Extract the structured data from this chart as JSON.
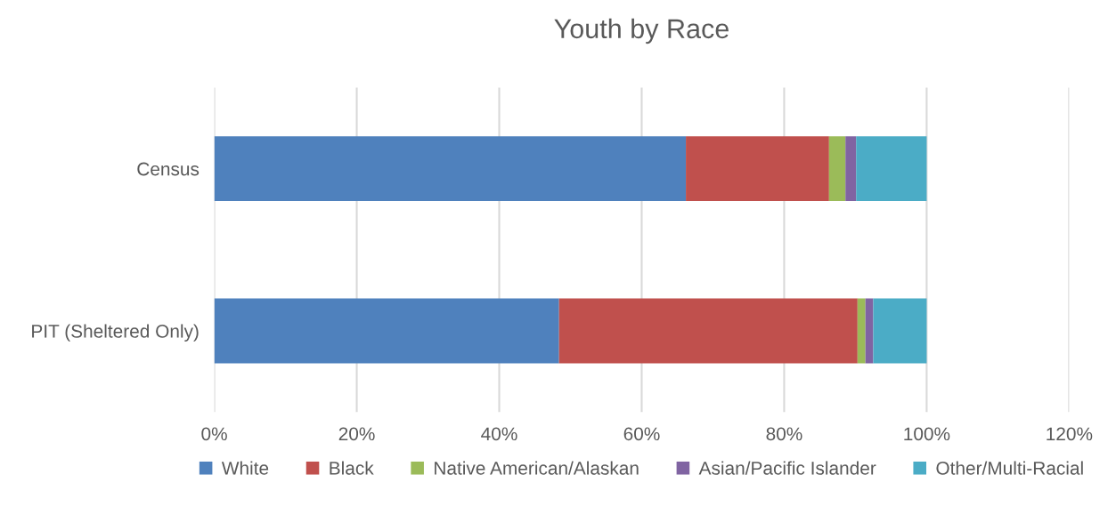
{
  "chart_data": {
    "type": "bar",
    "orientation": "horizontal",
    "stacked": true,
    "title": "Youth by Race",
    "categories": [
      "Census",
      "PIT (Sheltered Only)"
    ],
    "series": [
      {
        "name": "White",
        "color": "#4f81bd",
        "values": [
          66.2,
          48.4
        ]
      },
      {
        "name": "Black",
        "color": "#c0504d",
        "values": [
          20.1,
          41.9
        ]
      },
      {
        "name": "Native American/Alaskan",
        "color": "#9bbb59",
        "values": [
          2.3,
          1.1
        ]
      },
      {
        "name": "Asian/Pacific Islander",
        "color": "#8064a2",
        "values": [
          1.5,
          1.1
        ]
      },
      {
        "name": "Other/Multi-Racial",
        "color": "#4bacc6",
        "values": [
          9.9,
          7.5
        ]
      }
    ],
    "xlim": [
      0,
      120
    ],
    "xticks": [
      {
        "value": 0,
        "label": "0%"
      },
      {
        "value": 20,
        "label": "20%"
      },
      {
        "value": 40,
        "label": "40%"
      },
      {
        "value": 60,
        "label": "60%"
      },
      {
        "value": 80,
        "label": "80%"
      },
      {
        "value": 100,
        "label": "100%"
      },
      {
        "value": 120,
        "label": "120%"
      }
    ],
    "grid": "x",
    "legend": "bottom"
  }
}
